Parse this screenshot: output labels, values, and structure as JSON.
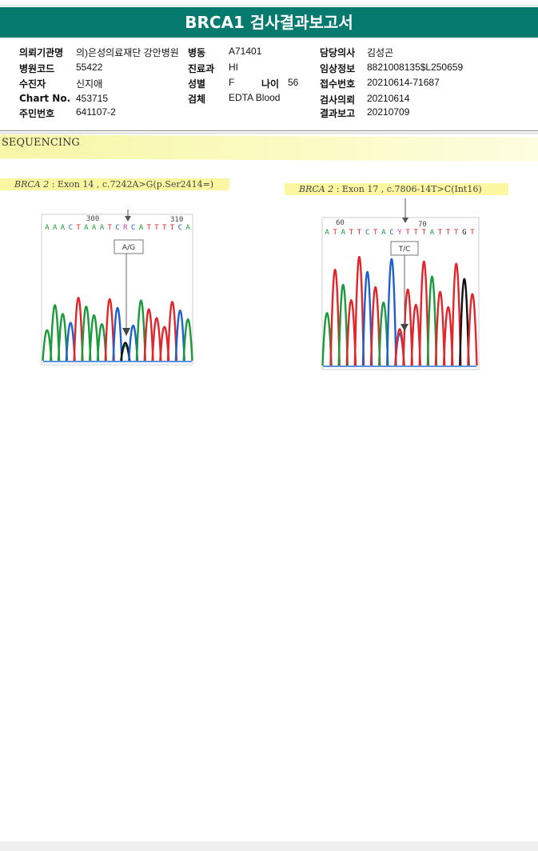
{
  "report": {
    "title": "BRCA1 검사결과보고서"
  },
  "info": {
    "institution_label": "의뢰기관명",
    "institution_value": "의)은성의료재단 강안병원",
    "ward_label": "병동",
    "ward_value": "A71401",
    "doctor_label": "담당의사",
    "doctor_value": "김성곤",
    "hospital_code_label": "병원코드",
    "hospital_code_value": "55422",
    "dept_label": "진료과",
    "dept_value": "HI",
    "clinical_label": "임상정보",
    "clinical_value": "8821008135$L250659",
    "examinee_label": "수진자",
    "examinee_value": "신지애",
    "sex_label": "성별",
    "sex_value": "F",
    "age_label": "나이",
    "age_value": "56",
    "receipt_label": "접수번호",
    "receipt_value": "20210614-71687",
    "chart_label": "Chart No.",
    "chart_value": "453715",
    "specimen_label": "검체",
    "specimen_value": "EDTA Blood",
    "request_label": "검사의뢰",
    "request_value": "20210614",
    "rrn_label": "주민번호",
    "rrn_value": "641107-2",
    "report_label": "결과보고",
    "report_value": "20210709"
  },
  "sequencing": {
    "section_title": "SEQUENCING",
    "variants": [
      {
        "gene": "BRCA 2",
        "desc": " : Exon 14 , c.7242A>G(p.Ser2414=)",
        "seq": "AAACTAAATCRCATTTTCA",
        "pos_left": "300",
        "pos_right": "310",
        "call": "A/G"
      },
      {
        "gene": "BRCA 2",
        "desc": " : Exon 17 , c.7806-14T>C(Int16)",
        "seq": "ATATTCTACYTTTATTTGT",
        "pos_left": "60",
        "pos_right": "70",
        "call": "T/C"
      }
    ]
  },
  "colors": {
    "banner": "#077a70",
    "base_A": "#1a9a3a",
    "base_C": "#1f5fd0",
    "base_G": "#111111",
    "base_T": "#e0262b"
  }
}
